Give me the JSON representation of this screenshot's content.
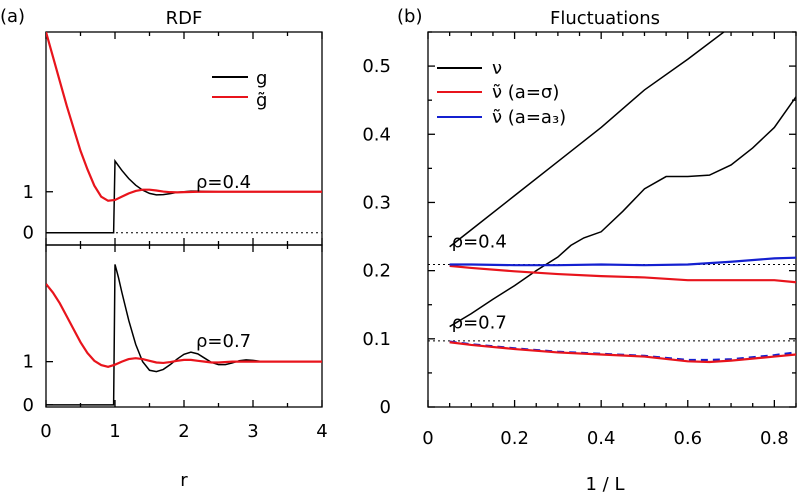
{
  "chart_data": [
    {
      "type": "line",
      "panel_label": "(a)",
      "title": "RDF",
      "xlabel": "r",
      "ylabel": "",
      "xlim": [
        0,
        4
      ],
      "x_ticks": [
        0,
        1,
        2,
        3,
        4
      ],
      "grid": false,
      "legend": {
        "placement": "top-right",
        "entries": [
          {
            "label": "g",
            "color": "#000000"
          },
          {
            "label": "g̃",
            "color": "#e8141c"
          }
        ]
      },
      "subplots": [
        {
          "name": "top",
          "annotation": "ρ=0.4",
          "ylim": [
            -0.3,
            4.9
          ],
          "y_ticks": [
            0,
            1
          ],
          "reference_line": 0,
          "series": [
            {
              "name": "g",
              "color": "#000000",
              "x": [
                0,
                0.98,
                0.98,
                1.0,
                1.1,
                1.2,
                1.3,
                1.4,
                1.5,
                1.6,
                1.7,
                1.8,
                1.9,
                2.0,
                2.1,
                2.2,
                2.3,
                2.5,
                3.0,
                3.5,
                4.0
              ],
              "y": [
                0,
                0,
                0,
                1.75,
                1.52,
                1.32,
                1.16,
                1.04,
                0.96,
                0.925,
                0.93,
                0.955,
                0.985,
                1.0,
                1.015,
                1.015,
                1.01,
                1.0,
                1.0,
                1.0,
                1.0
              ]
            },
            {
              "name": "g̃",
              "color": "#e8141c",
              "x": [
                0,
                0.1,
                0.2,
                0.3,
                0.4,
                0.5,
                0.6,
                0.7,
                0.8,
                0.9,
                1.0,
                1.1,
                1.2,
                1.3,
                1.4,
                1.5,
                1.6,
                1.7,
                1.8,
                1.9,
                2.0,
                2.2,
                2.5,
                3.0,
                4.0
              ],
              "y": [
                4.9,
                4.3,
                3.7,
                3.1,
                2.55,
                2.0,
                1.55,
                1.15,
                0.88,
                0.78,
                0.8,
                0.88,
                0.96,
                1.02,
                1.05,
                1.05,
                1.03,
                1.005,
                0.99,
                0.985,
                0.99,
                1.0,
                1.0,
                1.0,
                1.0
              ]
            }
          ]
        },
        {
          "name": "bottom",
          "annotation": "ρ=0.7",
          "ylim": [
            -0.05,
            3.7
          ],
          "y_ticks": [
            0,
            1
          ],
          "series": [
            {
              "name": "g",
              "color": "#000000",
              "x": [
                0,
                0.98,
                0.98,
                1.0,
                1.05,
                1.1,
                1.2,
                1.3,
                1.4,
                1.5,
                1.6,
                1.7,
                1.8,
                1.9,
                2.0,
                2.1,
                2.2,
                2.3,
                2.4,
                2.5,
                2.6,
                2.7,
                2.8,
                2.9,
                3.0,
                3.1,
                3.2,
                3.5,
                4.0
              ],
              "y": [
                0,
                0,
                0,
                3.25,
                2.95,
                2.6,
                1.95,
                1.4,
                1.0,
                0.8,
                0.77,
                0.82,
                0.93,
                1.06,
                1.17,
                1.22,
                1.18,
                1.08,
                0.98,
                0.93,
                0.93,
                0.97,
                1.02,
                1.04,
                1.03,
                1.01,
                1.0,
                1.0,
                1.0
              ]
            },
            {
              "name": "g̃",
              "color": "#e8141c",
              "x": [
                0,
                0.1,
                0.2,
                0.3,
                0.4,
                0.5,
                0.6,
                0.7,
                0.8,
                0.9,
                1.0,
                1.1,
                1.2,
                1.3,
                1.4,
                1.5,
                1.6,
                1.7,
                1.8,
                1.9,
                2.0,
                2.1,
                2.2,
                2.3,
                2.4,
                2.5,
                2.7,
                3.0,
                3.5,
                4.0
              ],
              "y": [
                2.8,
                2.6,
                2.35,
                2.05,
                1.75,
                1.45,
                1.2,
                1.02,
                0.92,
                0.88,
                0.93,
                1.0,
                1.06,
                1.08,
                1.06,
                1.02,
                0.98,
                0.97,
                0.99,
                1.02,
                1.04,
                1.04,
                1.02,
                1.0,
                0.98,
                0.98,
                1.0,
                1.0,
                1.0,
                1.0
              ]
            }
          ]
        }
      ]
    },
    {
      "type": "line",
      "panel_label": "(b)",
      "title": "Fluctuations",
      "xlabel": "1 / L",
      "ylabel": "",
      "xlim": [
        0,
        0.85
      ],
      "ylim": [
        0,
        0.55
      ],
      "x_ticks": [
        0,
        0.2,
        0.4,
        0.6,
        0.8
      ],
      "x_tick_labels": [
        "0",
        "0.2",
        "0.4",
        "0.6",
        "0.8"
      ],
      "y_ticks": [
        0,
        0.1,
        0.2,
        0.3,
        0.4,
        0.5
      ],
      "y_tick_labels": [
        "0",
        "0.1",
        "0.2",
        "0.3",
        "0.4",
        "0.5"
      ],
      "grid": false,
      "legend": {
        "placement": "top-left",
        "entries": [
          {
            "label": "ν",
            "color": "#000000"
          },
          {
            "label": "ν̃ (a=σ)",
            "color": "#e8141c"
          },
          {
            "label": "ν̃ (a=a₃)",
            "color": "#1420d0"
          }
        ]
      },
      "reference_lines": [
        0.209,
        0.097
      ],
      "annotations": [
        {
          "text": "ρ=0.4",
          "x": 0.05,
          "y": 0.234
        },
        {
          "text": "ρ=0.7",
          "x": 0.05,
          "y": 0.115
        }
      ],
      "series": [
        {
          "name": "ν (ρ=0.4)",
          "color": "#000000",
          "dashed": false,
          "x": [
            0.05,
            0.1,
            0.2,
            0.3,
            0.4,
            0.5,
            0.6,
            0.7,
            0.75
          ],
          "y": [
            0.235,
            0.26,
            0.31,
            0.36,
            0.41,
            0.465,
            0.51,
            0.558,
            0.585
          ]
        },
        {
          "name": "ν (ρ=0.7)",
          "color": "#000000",
          "dashed": false,
          "x": [
            0.05,
            0.1,
            0.15,
            0.2,
            0.25,
            0.3,
            0.33,
            0.36,
            0.4,
            0.45,
            0.5,
            0.55,
            0.6,
            0.65,
            0.7,
            0.75,
            0.8,
            0.85
          ],
          "y": [
            0.118,
            0.137,
            0.158,
            0.178,
            0.2,
            0.22,
            0.237,
            0.248,
            0.257,
            0.287,
            0.32,
            0.338,
            0.338,
            0.34,
            0.355,
            0.38,
            0.41,
            0.455
          ]
        },
        {
          "name": "ν̃ (a=σ) (ρ=0.4)",
          "color": "#e8141c",
          "dashed": false,
          "x": [
            0.05,
            0.1,
            0.2,
            0.3,
            0.4,
            0.5,
            0.6,
            0.7,
            0.8,
            0.85
          ],
          "y": [
            0.207,
            0.204,
            0.199,
            0.195,
            0.192,
            0.19,
            0.186,
            0.186,
            0.186,
            0.183
          ]
        },
        {
          "name": "ν̃ (a=a₃) (ρ=0.4)",
          "color": "#1420d0",
          "dashed": false,
          "x": [
            0.05,
            0.1,
            0.2,
            0.3,
            0.4,
            0.5,
            0.6,
            0.7,
            0.8,
            0.85
          ],
          "y": [
            0.209,
            0.209,
            0.208,
            0.208,
            0.209,
            0.208,
            0.209,
            0.213,
            0.218,
            0.219
          ]
        },
        {
          "name": "ν̃ (a=a₃) (ρ=0.7)",
          "color": "#1420d0",
          "dashed": true,
          "x": [
            0.05,
            0.1,
            0.2,
            0.3,
            0.4,
            0.5,
            0.6,
            0.65,
            0.7,
            0.8,
            0.85
          ],
          "y": [
            0.096,
            0.092,
            0.086,
            0.081,
            0.078,
            0.075,
            0.069,
            0.069,
            0.07,
            0.076,
            0.08
          ]
        },
        {
          "name": "ν̃ (a=σ) (ρ=0.7)",
          "color": "#e8141c",
          "dashed": false,
          "x": [
            0.05,
            0.1,
            0.2,
            0.3,
            0.4,
            0.5,
            0.6,
            0.65,
            0.7,
            0.8,
            0.85
          ],
          "y": [
            0.095,
            0.091,
            0.085,
            0.08,
            0.077,
            0.074,
            0.067,
            0.066,
            0.068,
            0.074,
            0.077
          ]
        }
      ]
    }
  ]
}
